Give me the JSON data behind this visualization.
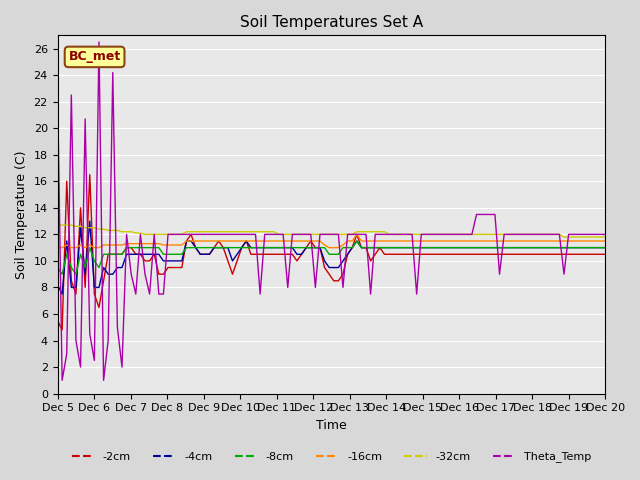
{
  "title": "Soil Temperatures Set A",
  "xlabel": "Time",
  "ylabel": "Soil Temperature (C)",
  "annotation": "BC_met",
  "ylim": [
    0,
    27
  ],
  "yticks": [
    0,
    2,
    4,
    6,
    8,
    10,
    12,
    14,
    16,
    18,
    20,
    22,
    24,
    26
  ],
  "xtick_labels": [
    "Dec 5",
    "Dec 6",
    "Dec 7",
    "Dec 8",
    "Dec 9",
    "Dec 10",
    "Dec 11",
    "Dec 12",
    "Dec 13",
    "Dec 14",
    "Dec 15",
    "Dec 16",
    "Dec 17",
    "Dec 18",
    "Dec 19",
    "Dec 20"
  ],
  "background_color": "#e8e8e8",
  "plot_bg_color": "#e8e8e8",
  "series": {
    "-2cm": {
      "color": "#cc0000",
      "data": [
        5.5,
        4.8,
        16.0,
        8.5,
        7.5,
        14.0,
        8.0,
        16.5,
        7.5,
        6.5,
        8.5,
        10.5,
        10.5,
        10.5,
        10.5,
        11.0,
        11.0,
        10.5,
        10.5,
        10.0,
        10.0,
        10.5,
        9.0,
        9.0,
        9.5,
        9.5,
        9.5,
        9.5,
        11.5,
        12.0,
        11.0,
        10.5,
        10.5,
        10.5,
        11.0,
        11.5,
        11.0,
        10.0,
        9.0,
        10.0,
        11.0,
        11.5,
        10.5,
        10.5,
        10.5,
        10.5,
        10.5,
        10.5,
        10.5,
        10.5,
        10.5,
        10.5,
        10.0,
        10.5,
        11.0,
        11.5,
        11.0,
        11.0,
        9.5,
        9.0,
        8.5,
        8.5,
        9.0,
        10.5,
        11.0,
        12.0,
        11.0,
        11.0,
        10.0,
        10.5,
        11.0,
        10.5,
        10.5,
        10.5,
        10.5,
        10.5,
        10.5,
        10.5,
        10.5,
        10.5,
        10.5,
        10.5,
        10.5,
        10.5,
        10.5,
        10.5,
        10.5,
        10.5,
        10.5,
        10.5,
        10.5,
        10.5,
        10.5,
        10.5,
        10.5,
        10.5,
        10.5,
        10.5,
        10.5,
        10.5,
        10.5,
        10.5,
        10.5,
        10.5,
        10.5,
        10.5,
        10.5,
        10.5,
        10.5,
        10.5,
        10.5,
        10.5,
        10.5,
        10.5,
        10.5,
        10.5,
        10.5,
        10.5,
        10.5,
        10.5
      ]
    },
    "-4cm": {
      "color": "#000099",
      "data": [
        8.2,
        7.5,
        11.5,
        8.0,
        8.0,
        12.5,
        9.0,
        13.0,
        8.0,
        8.0,
        9.5,
        9.0,
        9.0,
        9.5,
        9.5,
        10.5,
        10.5,
        10.5,
        10.5,
        10.5,
        10.5,
        10.5,
        10.5,
        10.0,
        10.0,
        10.0,
        10.0,
        10.0,
        11.5,
        11.5,
        11.0,
        10.5,
        10.5,
        10.5,
        11.0,
        11.0,
        11.0,
        11.0,
        10.0,
        10.5,
        11.0,
        11.5,
        11.0,
        11.0,
        11.0,
        11.0,
        11.0,
        11.0,
        11.0,
        11.0,
        11.0,
        11.0,
        10.5,
        10.5,
        11.0,
        11.0,
        11.0,
        11.0,
        10.0,
        9.5,
        9.5,
        9.5,
        10.0,
        10.5,
        11.0,
        11.5,
        11.0,
        11.0,
        11.0,
        11.0,
        11.0,
        11.0,
        11.0,
        11.0,
        11.0,
        11.0,
        11.0,
        11.0,
        11.0,
        11.0,
        11.0,
        11.0,
        11.0,
        11.0,
        11.0,
        11.0,
        11.0,
        11.0,
        11.0,
        11.0,
        11.0,
        11.0,
        11.0,
        11.0,
        11.0,
        11.0,
        11.0,
        11.0,
        11.0,
        11.0,
        11.0,
        11.0,
        11.0,
        11.0,
        11.0,
        11.0,
        11.0,
        11.0,
        11.0,
        11.0,
        11.0,
        11.0,
        11.0,
        11.0,
        11.0,
        11.0,
        11.0,
        11.0,
        11.0,
        11.0
      ]
    },
    "-8cm": {
      "color": "#00aa00",
      "data": [
        9.5,
        9.0,
        10.5,
        9.5,
        9.0,
        10.5,
        9.5,
        11.0,
        10.0,
        9.5,
        10.5,
        10.5,
        10.5,
        10.5,
        10.5,
        11.0,
        11.0,
        11.0,
        11.0,
        11.0,
        11.0,
        11.0,
        11.0,
        10.5,
        10.5,
        10.5,
        10.5,
        10.5,
        11.0,
        11.0,
        11.0,
        11.0,
        11.0,
        11.0,
        11.0,
        11.0,
        11.0,
        11.0,
        11.0,
        11.0,
        11.0,
        11.0,
        11.0,
        11.0,
        11.0,
        11.0,
        11.0,
        11.0,
        11.0,
        11.0,
        11.0,
        11.0,
        11.0,
        11.0,
        11.0,
        11.0,
        11.0,
        11.0,
        11.0,
        10.5,
        10.5,
        10.5,
        11.0,
        11.0,
        11.0,
        11.5,
        11.0,
        11.0,
        11.0,
        11.0,
        11.0,
        11.0,
        11.0,
        11.0,
        11.0,
        11.0,
        11.0,
        11.0,
        11.0,
        11.0,
        11.0,
        11.0,
        11.0,
        11.0,
        11.0,
        11.0,
        11.0,
        11.0,
        11.0,
        11.0,
        11.0,
        11.0,
        11.0,
        11.0,
        11.0,
        11.0,
        11.0,
        11.0,
        11.0,
        11.0,
        11.0,
        11.0,
        11.0,
        11.0,
        11.0,
        11.0,
        11.0,
        11.0,
        11.0,
        11.0,
        11.0,
        11.0,
        11.0,
        11.0,
        11.0,
        11.0,
        11.0,
        11.0,
        11.0,
        11.0
      ]
    },
    "-16cm": {
      "color": "#ff8800",
      "data": [
        11.0,
        11.0,
        11.2,
        11.0,
        11.0,
        11.2,
        11.0,
        11.2,
        11.0,
        11.0,
        11.2,
        11.2,
        11.2,
        11.2,
        11.2,
        11.3,
        11.3,
        11.3,
        11.3,
        11.3,
        11.3,
        11.3,
        11.3,
        11.2,
        11.2,
        11.2,
        11.2,
        11.2,
        11.5,
        11.5,
        11.5,
        11.5,
        11.5,
        11.5,
        11.5,
        11.5,
        11.5,
        11.5,
        11.5,
        11.5,
        11.5,
        11.5,
        11.5,
        11.5,
        11.5,
        11.5,
        11.5,
        11.5,
        11.5,
        11.5,
        11.5,
        11.5,
        11.5,
        11.5,
        11.5,
        11.5,
        11.5,
        11.5,
        11.2,
        11.0,
        11.0,
        11.0,
        11.2,
        11.5,
        11.5,
        12.0,
        11.5,
        11.5,
        11.5,
        11.5,
        11.5,
        11.5,
        11.5,
        11.5,
        11.5,
        11.5,
        11.5,
        11.5,
        11.5,
        11.5,
        11.5,
        11.5,
        11.5,
        11.5,
        11.5,
        11.5,
        11.5,
        11.5,
        11.5,
        11.5,
        11.5,
        11.5,
        11.5,
        11.5,
        11.5,
        11.5,
        11.5,
        11.5,
        11.5,
        11.5,
        11.5,
        11.5,
        11.5,
        11.5,
        11.5,
        11.5,
        11.5,
        11.5,
        11.5,
        11.5,
        11.5,
        11.5,
        11.5,
        11.5,
        11.5,
        11.5,
        11.5,
        11.5,
        11.5,
        11.5
      ]
    },
    "-32cm": {
      "color": "#cccc00",
      "data": [
        12.7,
        12.7,
        12.7,
        12.7,
        12.6,
        12.6,
        12.5,
        12.5,
        12.5,
        12.4,
        12.4,
        12.3,
        12.3,
        12.3,
        12.2,
        12.2,
        12.2,
        12.1,
        12.1,
        12.0,
        12.0,
        12.0,
        12.0,
        12.0,
        12.0,
        12.0,
        12.0,
        12.0,
        12.2,
        12.2,
        12.2,
        12.2,
        12.2,
        12.2,
        12.2,
        12.2,
        12.2,
        12.2,
        12.2,
        12.2,
        12.2,
        12.2,
        12.2,
        12.2,
        12.2,
        12.2,
        12.2,
        12.2,
        12.0,
        12.0,
        12.0,
        12.0,
        12.0,
        12.0,
        12.0,
        12.0,
        12.0,
        12.0,
        12.0,
        12.0,
        12.0,
        12.0,
        12.0,
        12.0,
        12.0,
        12.2,
        12.2,
        12.2,
        12.2,
        12.2,
        12.2,
        12.2,
        12.0,
        12.0,
        12.0,
        12.0,
        12.0,
        12.0,
        12.0,
        12.0,
        12.0,
        12.0,
        12.0,
        12.0,
        12.0,
        12.0,
        12.0,
        12.0,
        12.0,
        12.0,
        12.0,
        12.0,
        12.0,
        12.0,
        12.0,
        12.0,
        12.0,
        12.0,
        12.0,
        12.0,
        12.0,
        12.0,
        12.0,
        12.0,
        12.0,
        12.0,
        12.0,
        12.0,
        12.0,
        12.0,
        11.8,
        11.8,
        11.8,
        11.8,
        11.8,
        11.8,
        11.8,
        11.8,
        11.8,
        11.8
      ]
    },
    "Theta_Temp": {
      "color": "#aa00aa",
      "data": [
        23.0,
        1.0,
        3.0,
        22.5,
        4.0,
        2.0,
        20.7,
        4.5,
        2.5,
        26.5,
        1.0,
        4.0,
        24.2,
        5.0,
        2.0,
        12.0,
        9.0,
        7.5,
        12.0,
        9.0,
        7.5,
        12.0,
        7.5,
        7.5,
        12.0,
        12.0,
        12.0,
        12.0,
        12.0,
        12.0,
        12.0,
        12.0,
        12.0,
        12.0,
        12.0,
        12.0,
        12.0,
        12.0,
        12.0,
        12.0,
        12.0,
        12.0,
        12.0,
        12.0,
        7.5,
        12.0,
        12.0,
        12.0,
        12.0,
        12.0,
        8.0,
        12.0,
        12.0,
        12.0,
        12.0,
        12.0,
        8.0,
        12.0,
        12.0,
        12.0,
        12.0,
        12.0,
        8.0,
        12.0,
        12.0,
        12.0,
        12.0,
        12.0,
        7.5,
        12.0,
        12.0,
        12.0,
        12.0,
        12.0,
        12.0,
        12.0,
        12.0,
        12.0,
        7.5,
        12.0,
        12.0,
        12.0,
        12.0,
        12.0,
        12.0,
        12.0,
        12.0,
        12.0,
        12.0,
        12.0,
        12.0,
        13.5,
        13.5,
        13.5,
        13.5,
        13.5,
        9.0,
        12.0,
        12.0,
        12.0,
        12.0,
        12.0,
        12.0,
        12.0,
        12.0,
        12.0,
        12.0,
        12.0,
        12.0,
        12.0,
        9.0,
        12.0,
        12.0,
        12.0,
        12.0,
        12.0,
        12.0,
        12.0,
        12.0,
        12.0
      ]
    }
  },
  "legend_entries": [
    "-2cm",
    "-4cm",
    "-8cm",
    "-16cm",
    "-32cm",
    "Theta_Temp"
  ],
  "legend_colors": [
    "#cc0000",
    "#000099",
    "#00aa00",
    "#ff8800",
    "#cccc00",
    "#aa00aa"
  ],
  "legend_linestyles": [
    "--",
    "--",
    "--",
    "--",
    "--",
    "--"
  ]
}
